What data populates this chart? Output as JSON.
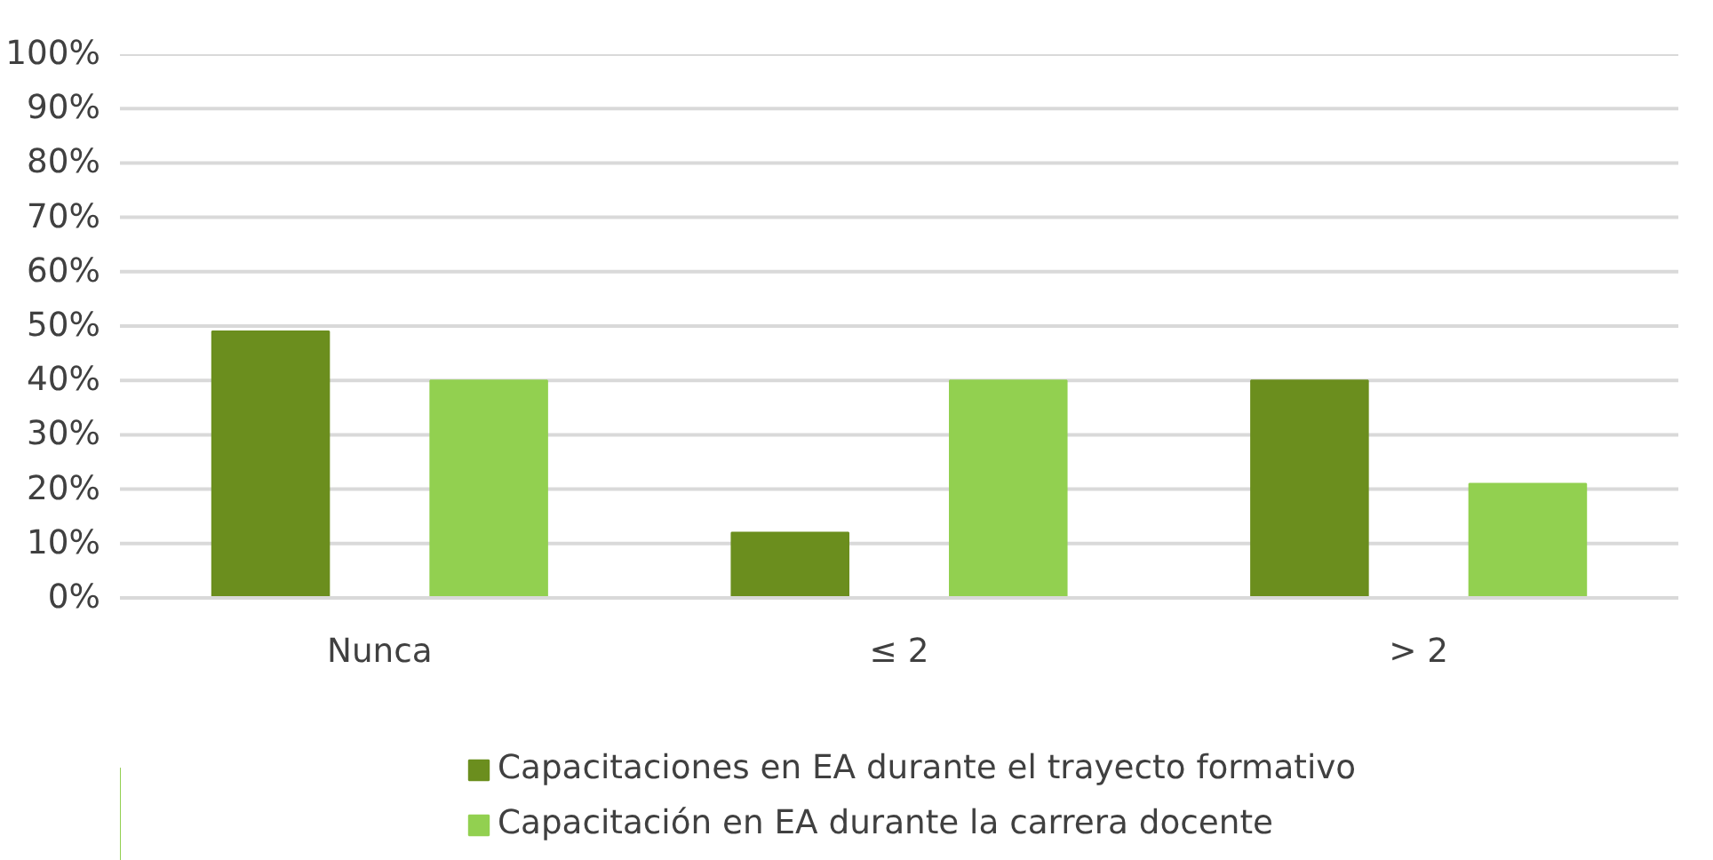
{
  "chart_data": {
    "type": "bar",
    "categories": [
      "Nunca",
      "≤ 2",
      "> 2"
    ],
    "series": [
      {
        "name": "Capacitaciones en EA durante el trayecto formativo",
        "color": "#6b8e1e",
        "values": [
          49,
          12,
          40
        ]
      },
      {
        "name": "Capacitación en EA durante la carrera docente",
        "color": "#92d050",
        "values": [
          40,
          40,
          21
        ]
      }
    ],
    "ylim": [
      0,
      100
    ],
    "yticks": [
      {
        "value": 0,
        "label": "0%"
      },
      {
        "value": 10,
        "label": "10%"
      },
      {
        "value": 20,
        "label": "20%"
      },
      {
        "value": 30,
        "label": "30%"
      },
      {
        "value": 40,
        "label": "40%"
      },
      {
        "value": 50,
        "label": "50%"
      },
      {
        "value": 60,
        "label": "60%"
      },
      {
        "value": 70,
        "label": "70%"
      },
      {
        "value": 80,
        "label": "80%"
      },
      {
        "value": 90,
        "label": "90%"
      },
      {
        "value": 100,
        "label": "100%"
      }
    ],
    "grid": "y",
    "legend": "bottom"
  }
}
